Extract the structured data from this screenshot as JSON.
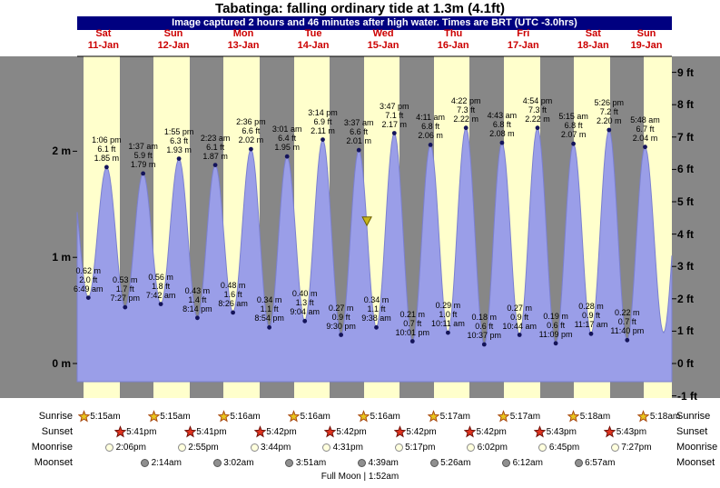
{
  "page": {
    "title": "Tabatinga: falling ordinary tide at 1.3m (4.1ft)",
    "caption": "Image captured 2 hours and 46 minutes after high water. Times are BRT (UTC -3.0hrs)"
  },
  "colors": {
    "night_band": "#878787",
    "day_band": "#ffffcc",
    "tide_fill": "#9a9ee8",
    "tide_edge": "#7b80d0",
    "caption_bar": "#000080",
    "day_label": "#cc0000",
    "dot": "#14145a",
    "marker_fill": "#c9b61c",
    "marker_edge": "#6b5e00",
    "sunrise_star": "#e8c41e",
    "sunrise_edge": "#a84a10",
    "sunset_star": "#e0321e",
    "sunset_edge": "#701008",
    "moonrise_fill": "#ffffdd",
    "moonrise_edge": "#8a8a8a",
    "moonset_fill": "#8f8f8f",
    "moonset_edge": "#555555"
  },
  "chart_data": {
    "type": "area",
    "title": "Tabatinga: falling ordinary tide at 1.3m (4.1ft)",
    "subtitle": "Image captured 2 hours and 46 minutes after high water. Times are BRT (UTC -3.0hrs)",
    "ylim_ft": [
      -1,
      9.5
    ],
    "y_ticks_m": [
      2,
      1,
      0
    ],
    "y_ticks_ft": [
      9,
      8,
      7,
      6,
      5,
      4,
      3,
      2,
      1,
      0,
      -1
    ],
    "grid": false,
    "legend": false,
    "days": [
      {
        "dow": "Sat",
        "date": "11-Jan"
      },
      {
        "dow": "Sun",
        "date": "12-Jan"
      },
      {
        "dow": "Mon",
        "date": "13-Jan"
      },
      {
        "dow": "Tue",
        "date": "14-Jan"
      },
      {
        "dow": "Wed",
        "date": "15-Jan"
      },
      {
        "dow": "Thu",
        "date": "16-Jan"
      },
      {
        "dow": "Fri",
        "date": "17-Jan"
      },
      {
        "dow": "Sat",
        "date": "18-Jan"
      },
      {
        "dow": "Sun",
        "date": "19-Jan"
      }
    ],
    "tide_events": [
      {
        "date": "11-Jan",
        "time": "6:49 am",
        "type": "low",
        "height_m": 0.62,
        "height_ft": 2.0
      },
      {
        "date": "11-Jan",
        "time": "1:06 pm",
        "type": "high",
        "height_m": 1.85,
        "height_ft": 6.1
      },
      {
        "date": "11-Jan",
        "time": "7:27 pm",
        "type": "low",
        "height_m": 0.53,
        "height_ft": 1.7
      },
      {
        "date": "12-Jan",
        "time": "1:37 am",
        "type": "high",
        "height_m": 1.79,
        "height_ft": 5.9
      },
      {
        "date": "12-Jan",
        "time": "7:42 am",
        "type": "low",
        "height_m": 0.56,
        "height_ft": 1.8
      },
      {
        "date": "12-Jan",
        "time": "1:55 pm",
        "type": "high",
        "height_m": 1.93,
        "height_ft": 6.3
      },
      {
        "date": "12-Jan",
        "time": "8:14 pm",
        "type": "low",
        "height_m": 0.43,
        "height_ft": 1.4
      },
      {
        "date": "13-Jan",
        "time": "2:23 am",
        "type": "high",
        "height_m": 1.87,
        "height_ft": 6.1
      },
      {
        "date": "13-Jan",
        "time": "8:26 am",
        "type": "low",
        "height_m": 0.48,
        "height_ft": 1.6
      },
      {
        "date": "13-Jan",
        "time": "2:36 pm",
        "type": "high",
        "height_m": 2.02,
        "height_ft": 6.6
      },
      {
        "date": "13-Jan",
        "time": "8:54 pm",
        "type": "low",
        "height_m": 0.34,
        "height_ft": 1.1
      },
      {
        "date": "14-Jan",
        "time": "3:01 am",
        "type": "high",
        "height_m": 1.95,
        "height_ft": 6.4
      },
      {
        "date": "14-Jan",
        "time": "9:04 am",
        "type": "low",
        "height_m": 0.4,
        "height_ft": 1.3
      },
      {
        "date": "14-Jan",
        "time": "3:14 pm",
        "type": "high",
        "height_m": 2.11,
        "height_ft": 6.9
      },
      {
        "date": "14-Jan",
        "time": "9:30 pm",
        "type": "low",
        "height_m": 0.27,
        "height_ft": 0.9
      },
      {
        "date": "15-Jan",
        "time": "3:37 am",
        "type": "high",
        "height_m": 2.01,
        "height_ft": 6.6
      },
      {
        "date": "15-Jan",
        "time": "9:38 am",
        "type": "low",
        "height_m": 0.34,
        "height_ft": 1.1
      },
      {
        "date": "15-Jan",
        "time": "3:47 pm",
        "type": "high",
        "height_m": 2.17,
        "height_ft": 7.1
      },
      {
        "date": "15-Jan",
        "time": "10:01 pm",
        "type": "low",
        "height_m": 0.21,
        "height_ft": 0.7
      },
      {
        "date": "16-Jan",
        "time": "4:11 am",
        "type": "high",
        "height_m": 2.06,
        "height_ft": 6.8
      },
      {
        "date": "16-Jan",
        "time": "10:11 am",
        "type": "low",
        "height_m": 0.29,
        "height_ft": 1.0
      },
      {
        "date": "16-Jan",
        "time": "4:22 pm",
        "type": "high",
        "height_m": 2.22,
        "height_ft": 7.3
      },
      {
        "date": "16-Jan",
        "time": "10:37 pm",
        "type": "low",
        "height_m": 0.18,
        "height_ft": 0.6
      },
      {
        "date": "17-Jan",
        "time": "4:43 am",
        "type": "high",
        "height_m": 2.08,
        "height_ft": 6.8
      },
      {
        "date": "17-Jan",
        "time": "10:44 am",
        "type": "low",
        "height_m": 0.27,
        "height_ft": 0.9
      },
      {
        "date": "17-Jan",
        "time": "4:54 pm",
        "type": "high",
        "height_m": 2.22,
        "height_ft": 7.3
      },
      {
        "date": "17-Jan",
        "time": "11:09 pm",
        "type": "low",
        "height_m": 0.19,
        "height_ft": 0.6
      },
      {
        "date": "18-Jan",
        "time": "5:15 am",
        "type": "high",
        "height_m": 2.07,
        "height_ft": 6.8
      },
      {
        "date": "18-Jan",
        "time": "11:17 am",
        "type": "low",
        "height_m": 0.28,
        "height_ft": 0.9
      },
      {
        "date": "18-Jan",
        "time": "5:26 pm",
        "type": "high",
        "height_m": 2.2,
        "height_ft": 7.2
      },
      {
        "date": "18-Jan",
        "time": "11:40 pm",
        "type": "low",
        "height_m": 0.22,
        "height_ft": 0.7
      },
      {
        "date": "19-Jan",
        "time": "5:48 am",
        "type": "high",
        "height_m": 2.04,
        "height_ft": 6.7
      }
    ],
    "current_level_marker": {
      "date": "15-Jan",
      "time": "6:23 am",
      "height_m": 1.3,
      "height_ft": 4.1
    }
  },
  "almanac": {
    "rows": [
      {
        "label": "Sunrise",
        "icon": "sunrise-star-icon",
        "entries": [
          {
            "date": "11-Jan",
            "time": "5:15am"
          },
          {
            "date": "12-Jan",
            "time": "5:15am"
          },
          {
            "date": "13-Jan",
            "time": "5:16am"
          },
          {
            "date": "14-Jan",
            "time": "5:16am"
          },
          {
            "date": "15-Jan",
            "time": "5:16am"
          },
          {
            "date": "16-Jan",
            "time": "5:17am"
          },
          {
            "date": "17-Jan",
            "time": "5:17am"
          },
          {
            "date": "18-Jan",
            "time": "5:18am"
          },
          {
            "date": "19-Jan",
            "time": "5:18am"
          }
        ]
      },
      {
        "label": "Sunset",
        "icon": "sunset-star-icon",
        "entries": [
          {
            "date": "11-Jan",
            "time": "5:41pm"
          },
          {
            "date": "12-Jan",
            "time": "5:41pm"
          },
          {
            "date": "13-Jan",
            "time": "5:42pm"
          },
          {
            "date": "14-Jan",
            "time": "5:42pm"
          },
          {
            "date": "15-Jan",
            "time": "5:42pm"
          },
          {
            "date": "16-Jan",
            "time": "5:42pm"
          },
          {
            "date": "17-Jan",
            "time": "5:43pm"
          },
          {
            "date": "18-Jan",
            "time": "5:43pm"
          }
        ]
      },
      {
        "label": "Moonrise",
        "icon": "moonrise-icon",
        "entries": [
          {
            "date": "11-Jan",
            "time": "2:06pm"
          },
          {
            "date": "12-Jan",
            "time": "2:55pm"
          },
          {
            "date": "13-Jan",
            "time": "3:44pm"
          },
          {
            "date": "14-Jan",
            "time": "4:31pm"
          },
          {
            "date": "15-Jan",
            "time": "5:17pm"
          },
          {
            "date": "16-Jan",
            "time": "6:02pm"
          },
          {
            "date": "17-Jan",
            "time": "6:45pm"
          },
          {
            "date": "18-Jan",
            "time": "7:27pm"
          }
        ]
      },
      {
        "label": "Moonset",
        "icon": "moonset-icon",
        "entries": [
          {
            "date": "12-Jan",
            "time": "2:14am"
          },
          {
            "date": "13-Jan",
            "time": "3:02am"
          },
          {
            "date": "14-Jan",
            "time": "3:51am"
          },
          {
            "date": "15-Jan",
            "time": "4:39am"
          },
          {
            "date": "16-Jan",
            "time": "5:26am"
          },
          {
            "date": "17-Jan",
            "time": "6:12am"
          },
          {
            "date": "18-Jan",
            "time": "6:57am"
          }
        ]
      }
    ],
    "moon_phase": "Full Moon | 1:52am"
  }
}
